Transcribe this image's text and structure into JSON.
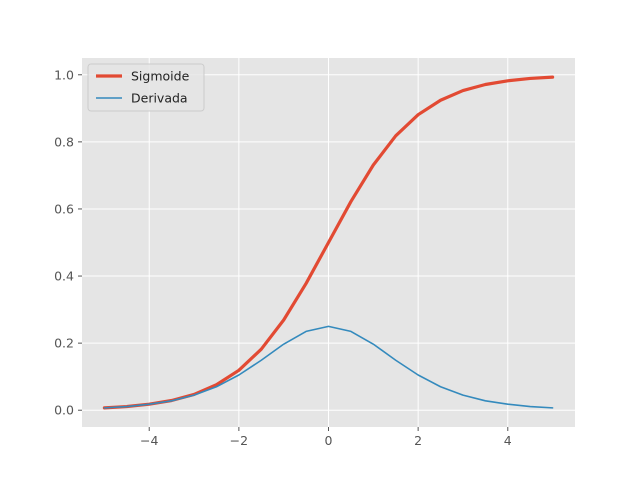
{
  "chart_data": {
    "type": "line",
    "title": "",
    "xlabel": "",
    "ylabel": "",
    "xlim": [
      -5.5,
      5.5
    ],
    "ylim": [
      -0.05,
      1.05
    ],
    "grid": true,
    "legend_position": "top-left",
    "x_ticks": [
      -4,
      -2,
      0,
      2,
      4
    ],
    "x_tick_labels": [
      "−4",
      "−2",
      "0",
      "2",
      "4"
    ],
    "y_ticks": [
      0.0,
      0.2,
      0.4,
      0.6,
      0.8,
      1.0
    ],
    "y_tick_labels": [
      "0.0",
      "0.2",
      "0.4",
      "0.6",
      "0.8",
      "1.0"
    ],
    "x": [
      -5,
      -4.5,
      -4,
      -3.5,
      -3,
      -2.5,
      -2,
      -1.5,
      -1,
      -0.5,
      0,
      0.5,
      1,
      1.5,
      2,
      2.5,
      3,
      3.5,
      4,
      4.5,
      5
    ],
    "series": [
      {
        "name": "Sigmoide",
        "color": "#E24A33",
        "values": [
          0.007,
          0.011,
          0.018,
          0.029,
          0.047,
          0.076,
          0.119,
          0.182,
          0.269,
          0.378,
          0.5,
          0.622,
          0.731,
          0.818,
          0.881,
          0.924,
          0.953,
          0.971,
          0.982,
          0.989,
          0.993
        ]
      },
      {
        "name": "Derivada",
        "color": "#348ABD",
        "values": [
          0.007,
          0.011,
          0.018,
          0.028,
          0.045,
          0.07,
          0.105,
          0.149,
          0.197,
          0.235,
          0.25,
          0.235,
          0.197,
          0.149,
          0.105,
          0.07,
          0.045,
          0.028,
          0.018,
          0.011,
          0.007
        ]
      }
    ]
  }
}
